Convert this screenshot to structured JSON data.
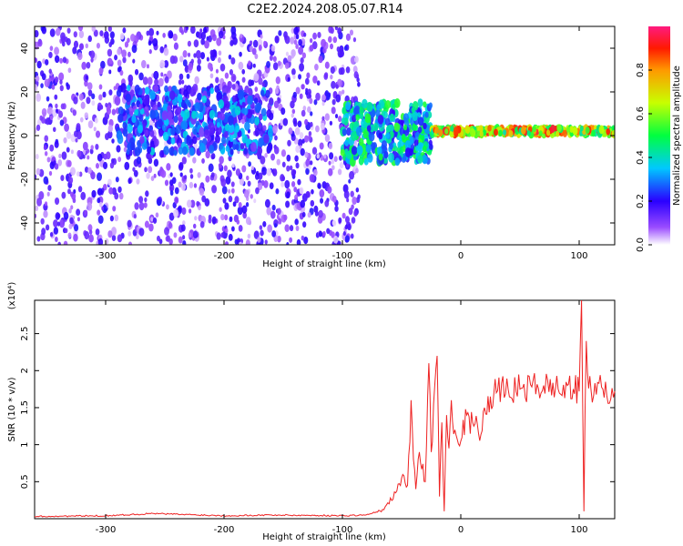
{
  "title": "C2E2.2024.208.05.07.R14",
  "colors": {
    "snr_line": "#ee2222",
    "axes": "#000000",
    "background": "#ffffff"
  },
  "chart_data": [
    {
      "type": "heatmap",
      "panel": "top",
      "xlabel": "Height of straight line (km)",
      "ylabel": "Frequency (Hz)",
      "xlim": [
        -360,
        130
      ],
      "ylim": [
        -50,
        50
      ],
      "x_ticks": [
        -300,
        -200,
        -100,
        0,
        100
      ],
      "y_ticks": [
        -40,
        -20,
        0,
        20,
        40
      ],
      "colorbar": {
        "label": "Normalized spectral amplitude",
        "range": [
          0.0,
          1.0
        ],
        "ticks": [
          "0.0",
          "0.2",
          "0.4",
          "0.6",
          "0.8"
        ]
      },
      "description_regions": [
        {
          "x_range": [
            -360,
            -85
          ],
          "freq_range": [
            -50,
            50
          ],
          "amplitude": "low (0.0-0.2), scattered"
        },
        {
          "x_range": [
            -290,
            -160
          ],
          "freq_range": [
            -5,
            20
          ],
          "amplitude": "0.1-0.4"
        },
        {
          "x_range": [
            -100,
            -25
          ],
          "freq_range": [
            -10,
            15
          ],
          "amplitude": "0.2-0.6"
        },
        {
          "x_range": [
            -25,
            130
          ],
          "freq_range": [
            0,
            4
          ],
          "amplitude": "0.4-1.0, narrow band near 2 Hz"
        }
      ]
    },
    {
      "type": "line",
      "panel": "bottom",
      "xlabel": "Height of straight line (km)",
      "ylabel": "SNR (10 * v/v)",
      "y_multiplier": "(x10⁴)",
      "xlim": [
        -360,
        130
      ],
      "ylim": [
        0,
        2.95
      ],
      "x_ticks": [
        -300,
        -200,
        -100,
        0,
        100
      ],
      "y_ticks": [
        0.5,
        1.0,
        1.5,
        2.0,
        2.5
      ],
      "x": [
        -360,
        -300,
        -260,
        -200,
        -160,
        -100,
        -80,
        -65,
        -55,
        -50,
        -45,
        -42,
        -40,
        -38,
        -35,
        -30,
        -27,
        -25,
        -22,
        -20,
        -18,
        -16,
        -14,
        -12,
        -10,
        -8,
        -5,
        0,
        5,
        10,
        15,
        20,
        25,
        30,
        40,
        50,
        60,
        70,
        80,
        90,
        95,
        100,
        102,
        104,
        105,
        106,
        108,
        110,
        120,
        130
      ],
      "values": [
        0.03,
        0.04,
        0.07,
        0.04,
        0.05,
        0.04,
        0.05,
        0.12,
        0.35,
        0.55,
        0.45,
        1.6,
        0.8,
        0.4,
        0.9,
        0.5,
        2.1,
        0.9,
        1.8,
        2.2,
        0.3,
        1.3,
        0.1,
        1.4,
        0.95,
        1.6,
        1.2,
        1.05,
        1.4,
        1.3,
        1.15,
        1.5,
        1.65,
        1.7,
        1.75,
        1.75,
        1.78,
        1.8,
        1.76,
        1.8,
        1.75,
        1.72,
        2.95,
        0.1,
        1.5,
        2.4,
        1.76,
        1.74,
        1.75,
        1.72
      ]
    }
  ]
}
